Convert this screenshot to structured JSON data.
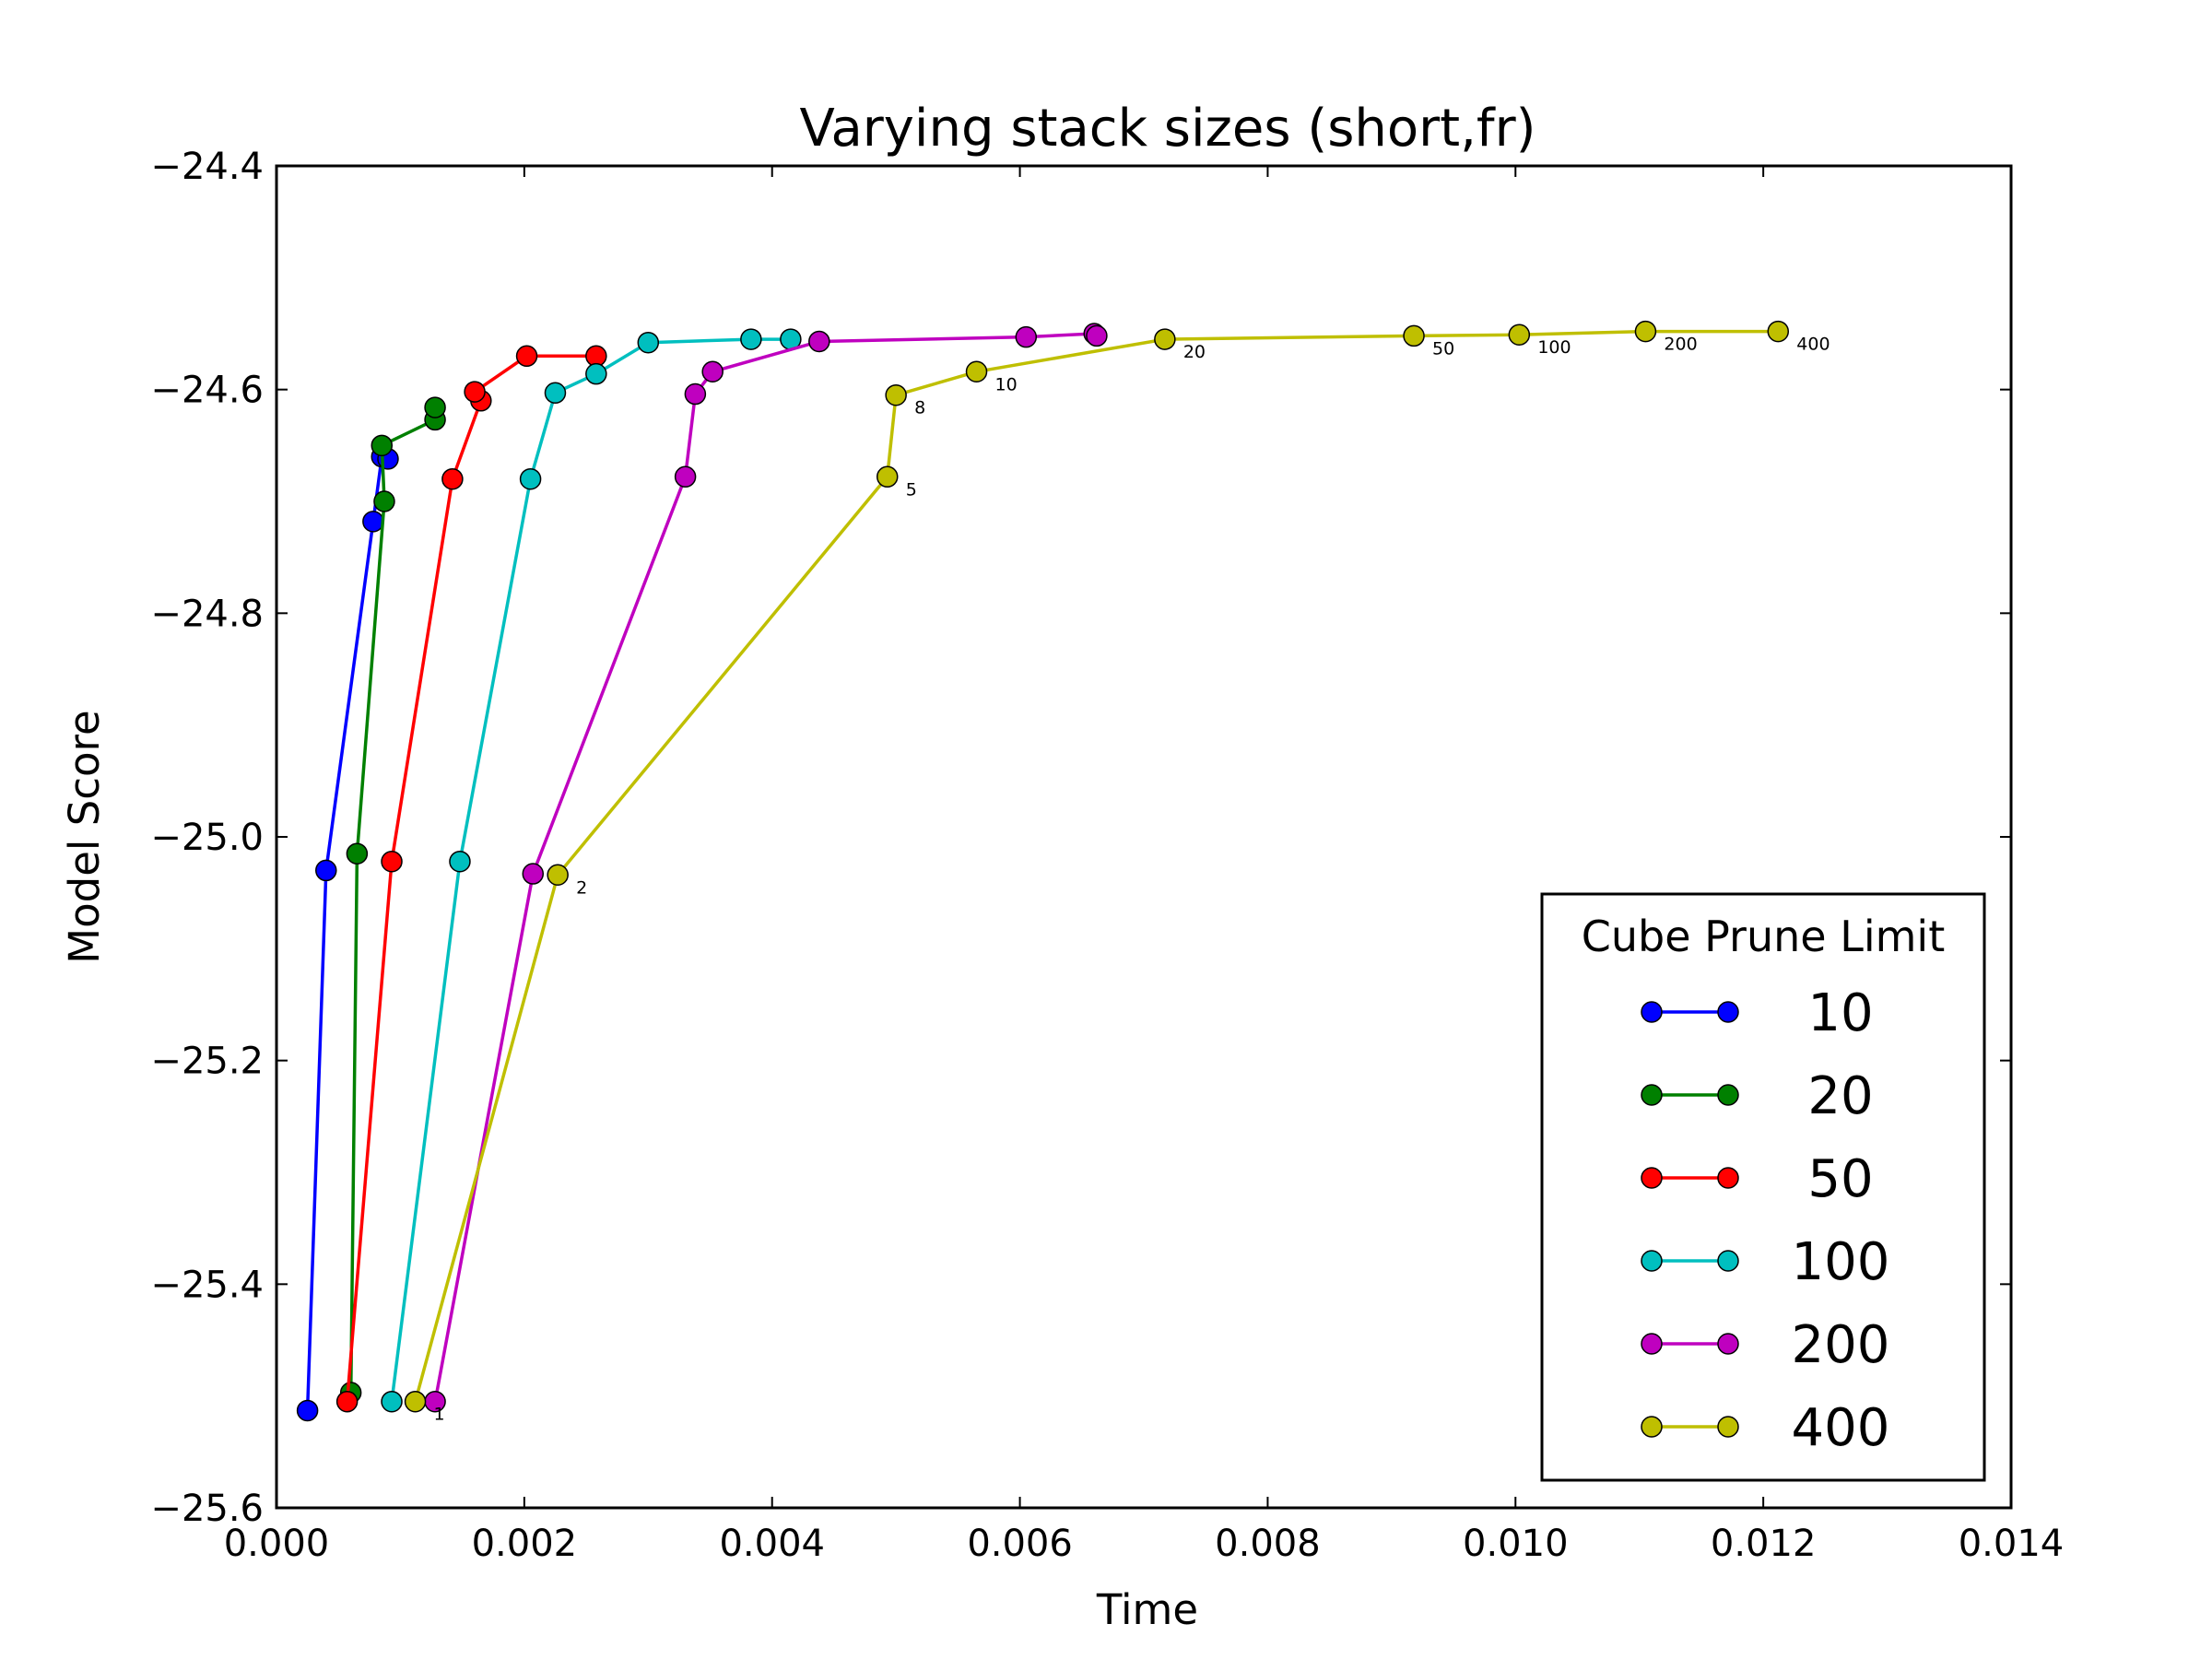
{
  "chart_data": {
    "type": "line",
    "title": "Varying stack sizes (short,fr)",
    "xlabel": "Time",
    "ylabel": "Model Score",
    "xlim": [
      0.0,
      0.014
    ],
    "ylim": [
      -25.6,
      -24.4
    ],
    "xticks": [
      0.0,
      0.002,
      0.004,
      0.006,
      0.008,
      0.01,
      0.012,
      0.014
    ],
    "xtick_labels": [
      "0.000",
      "0.002",
      "0.004",
      "0.006",
      "0.008",
      "0.010",
      "0.012",
      "0.014"
    ],
    "yticks": [
      -24.4,
      -24.6,
      -24.8,
      -25.0,
      -25.2,
      -25.4,
      -25.6
    ],
    "ytick_labels": [
      "−24.4",
      "−24.6",
      "−24.8",
      "−25.0",
      "−25.2",
      "−25.4",
      "−25.6"
    ],
    "grid": false,
    "legend": {
      "title": "Cube Prune Limit",
      "position": "lower-right"
    },
    "series": [
      {
        "name": "10",
        "color": "#0000ff",
        "x": [
          0.00025,
          0.0004,
          0.00078,
          0.00085,
          0.0009
        ],
        "y": [
          -25.513,
          -25.03,
          -24.718,
          -24.66,
          -24.662
        ]
      },
      {
        "name": "20",
        "color": "#008000",
        "x": [
          0.0006,
          0.00065,
          0.00087,
          0.00085,
          0.00128,
          0.00128
        ],
        "y": [
          -25.497,
          -25.015,
          -24.7,
          -24.65,
          -24.627,
          -24.616
        ]
      },
      {
        "name": "50",
        "color": "#ff0000",
        "x": [
          0.00057,
          0.00093,
          0.00142,
          0.00165,
          0.0016,
          0.00202,
          0.00258
        ],
        "y": [
          -25.505,
          -25.022,
          -24.68,
          -24.61,
          -24.602,
          -24.57,
          -24.57
        ]
      },
      {
        "name": "100",
        "color": "#00bfbf",
        "x": [
          0.00093,
          0.00148,
          0.00205,
          0.00225,
          0.00258,
          0.003,
          0.00383,
          0.00415
        ],
        "y": [
          -25.505,
          -25.022,
          -24.68,
          -24.603,
          -24.586,
          -24.558,
          -24.555,
          -24.555
        ]
      },
      {
        "name": "200",
        "color": "#bf00bf",
        "x": [
          0.00128,
          0.00207,
          0.0033,
          0.00338,
          0.00352,
          0.00438,
          0.00605,
          0.0066,
          0.00662
        ],
        "y": [
          -25.505,
          -25.033,
          -24.678,
          -24.604,
          -24.584,
          -24.557,
          -24.553,
          -24.55,
          -24.552
        ]
      },
      {
        "name": "400",
        "color": "#bfbf00",
        "x": [
          0.00112,
          0.00227,
          0.00493,
          0.005,
          0.00565,
          0.00717,
          0.00918,
          0.01003,
          0.01105,
          0.01212
        ],
        "y": [
          -25.505,
          -25.034,
          -24.678,
          -24.605,
          -24.584,
          -24.555,
          -24.552,
          -24.551,
          -24.548,
          -24.548
        ],
        "point_labels": [
          "1",
          "2",
          "5",
          "8",
          "10",
          "20",
          "50",
          "100",
          "200",
          "400"
        ]
      }
    ]
  }
}
